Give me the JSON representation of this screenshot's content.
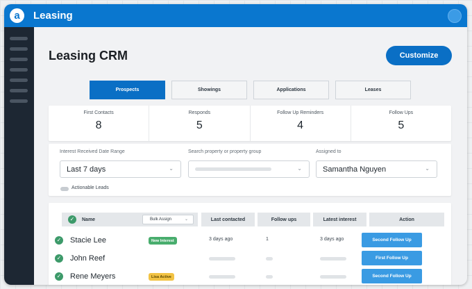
{
  "app": {
    "name": "Leasing",
    "logo_letter": "a"
  },
  "page": {
    "title": "Leasing CRM",
    "customize_label": "Customize"
  },
  "tabs": [
    "Prospects",
    "Showings",
    "Applications",
    "Leases"
  ],
  "active_tab": "Prospects",
  "stats": [
    {
      "label": "First Contacts",
      "value": "8"
    },
    {
      "label": "Responds",
      "value": "5"
    },
    {
      "label": "Follow Up Reminders",
      "value": "4"
    },
    {
      "label": "Follow Ups",
      "value": "5"
    }
  ],
  "filters": {
    "date_range": {
      "label": "Interest Received Date Range",
      "value": "Last 7 days"
    },
    "search": {
      "label": "Search property or property group",
      "value": ""
    },
    "assigned": {
      "label": "Assigned to",
      "value": "Samantha Nguyen"
    },
    "actionable_label": "Actionable Leads"
  },
  "table": {
    "columns": {
      "name": "Name",
      "bulk_assign": "Bulk Assign",
      "last_contacted": "Last contacted",
      "follow_ups": "Follow ups",
      "latest_interest": "Latest interest",
      "action": "Action"
    },
    "rows": [
      {
        "name": "Stacie Lee",
        "badge": "New Interest",
        "badge_color": "green",
        "last_contacted": "3 days ago",
        "follow_ups": "1",
        "latest_interest": "3 days ago",
        "action": "Second Follow Up"
      },
      {
        "name": "John Reef",
        "badge": "",
        "badge_color": "",
        "last_contacted": "",
        "follow_ups": "",
        "latest_interest": "",
        "action": "First Follow Up"
      },
      {
        "name": "Rene Meyers",
        "badge": "Lisa Active",
        "badge_color": "yellow",
        "last_contacted": "",
        "follow_ups": "",
        "latest_interest": "",
        "action": "Second Follow Up"
      }
    ]
  },
  "colors": {
    "primary": "#0a77cf",
    "sidebar": "#1d2733",
    "action_button": "#3a9be3",
    "badge_green": "#48ad6d",
    "badge_yellow": "#f2c344"
  }
}
